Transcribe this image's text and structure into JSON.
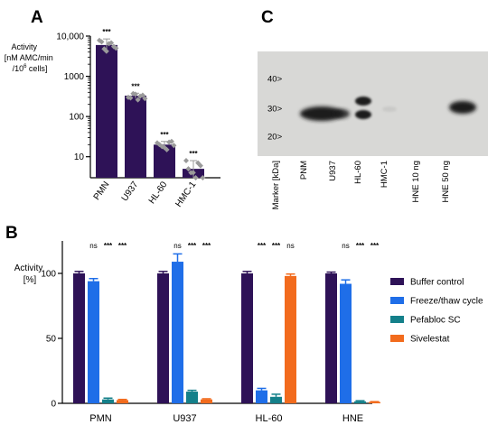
{
  "panels": {
    "A": {
      "letter": "A"
    },
    "B": {
      "letter": "B"
    },
    "C": {
      "letter": "C"
    }
  },
  "colors": {
    "buffer": "#2e1257",
    "freeze": "#1f6ee8",
    "pefabloc": "#14808a",
    "sivelestat": "#f26b1d",
    "point": "#9a9a9a",
    "blot_bg": "#d8d8d6",
    "band": "#1b1b1b"
  },
  "chart_data": [
    {
      "panel": "A",
      "type": "bar",
      "scale": "log",
      "categories": [
        "PMN",
        "U937",
        "HL-60",
        "HMC-1"
      ],
      "values": [
        6000,
        330,
        20,
        5
      ],
      "errors": [
        [
          4500,
          8500
        ],
        [
          280,
          380
        ],
        [
          16,
          24
        ],
        [
          3,
          8
        ]
      ],
      "points": [
        [
          7800,
          4800,
          6500,
          5500,
          7200,
          4200,
          6800,
          5000
        ],
        [
          300,
          370,
          260,
          340,
          290,
          360,
          320,
          280
        ],
        [
          22,
          18,
          15,
          24,
          20,
          17,
          23,
          19
        ],
        [
          8,
          4,
          3,
          6,
          5,
          4,
          7,
          3
        ]
      ],
      "significance": [
        "***",
        "***",
        "***",
        "***"
      ],
      "ylim": [
        3,
        10000
      ],
      "yticks": [
        10,
        100,
        1000,
        10000
      ],
      "ytick_labels": [
        "10",
        "100",
        "1000",
        "10,000"
      ],
      "ylabel_lines": [
        "Activity",
        "[nM AMC/min",
        "/10",
        "6",
        " cells]"
      ]
    },
    {
      "panel": "B",
      "type": "bar",
      "categories": [
        "PMN",
        "U937",
        "HL-60",
        "HNE"
      ],
      "series": [
        {
          "name": "Buffer control",
          "color_key": "buffer",
          "values": [
            100,
            100,
            100,
            100
          ],
          "errors": [
            1.5,
            1.5,
            1.5,
            1.0
          ]
        },
        {
          "name": "Freeze/thaw cycle",
          "color_key": "freeze",
          "values": [
            94,
            109,
            10,
            92
          ],
          "errors": [
            2,
            6,
            1.5,
            3
          ]
        },
        {
          "name": "Pefabloc SC",
          "color_key": "pefabloc",
          "values": [
            3,
            9,
            5,
            1.5
          ],
          "errors": [
            1,
            1,
            2,
            0.5
          ]
        },
        {
          "name": "Sivelestat",
          "color_key": "sivelestat",
          "values": [
            2.5,
            3,
            98,
            1
          ],
          "errors": [
            0.5,
            0.5,
            1.5,
            0.3
          ]
        }
      ],
      "significance": [
        [
          "ns",
          "***",
          "***"
        ],
        [
          "ns",
          "***",
          "***"
        ],
        [
          "***",
          "***",
          "ns"
        ],
        [
          "ns",
          "***",
          "***"
        ]
      ],
      "ylim": [
        0,
        125
      ],
      "yticks": [
        0,
        50,
        100
      ],
      "ylabel_lines": [
        "Activity",
        "[%]"
      ]
    },
    {
      "panel": "C",
      "type": "blot",
      "marker_labels": [
        "40>",
        "30>",
        "20>"
      ],
      "marker_kda": [
        40,
        30,
        20
      ],
      "lanes": [
        "Marker [kDa]",
        "PNM",
        "U937",
        "HL-60",
        "HMC-1",
        "HNE 10 ng",
        "HNE 50 ng"
      ]
    }
  ]
}
